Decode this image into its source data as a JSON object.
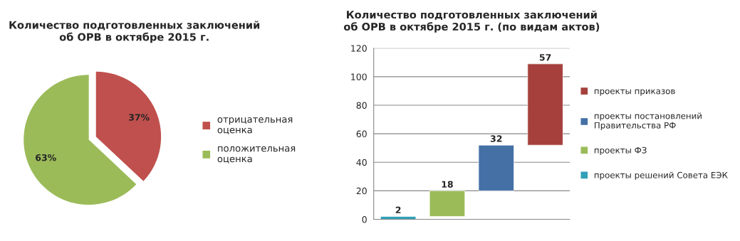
{
  "chart_data": [
    {
      "type": "pie",
      "title": "Количество подготовленных заключений\nоб ОРВ в октябре 2015 г.",
      "categories": [
        "отрицательная\nоценка",
        "положительная\nоценка"
      ],
      "values": [
        37,
        63
      ],
      "colors": [
        "#c0504d",
        "#9bbb59"
      ],
      "value_labels": [
        "37%",
        "63%"
      ],
      "legend": "right"
    },
    {
      "type": "bar",
      "title": "Количество подготовленных заключений\nоб ОРВ в октябре 2015 г. (по видам актов)",
      "categories": [
        null,
        null,
        null,
        null
      ],
      "series": [
        {
          "name": "проекты приказов",
          "color": "#a5403d",
          "values": [
            null,
            null,
            null,
            57
          ],
          "base": [
            null,
            null,
            null,
            52
          ]
        },
        {
          "name": "проекты постановлений\nПравительства РФ",
          "color": "#4470a6",
          "values": [
            null,
            null,
            32,
            null
          ],
          "base": [
            null,
            null,
            20,
            null
          ]
        },
        {
          "name": "проекты ФЗ",
          "color": "#9bbb59",
          "values": [
            null,
            18,
            null,
            null
          ],
          "base": [
            null,
            2,
            null,
            null
          ]
        },
        {
          "name": "проекты решений Совета ЕЭК",
          "color": "#31a0b8",
          "values": [
            2,
            null,
            null,
            null
          ],
          "base": [
            0,
            null,
            null,
            null
          ]
        }
      ],
      "ylim": [
        0,
        120
      ],
      "yticks": [
        0,
        20,
        40,
        60,
        80,
        100,
        120
      ],
      "grid": "y",
      "data_labels": true,
      "legend": "right"
    }
  ]
}
